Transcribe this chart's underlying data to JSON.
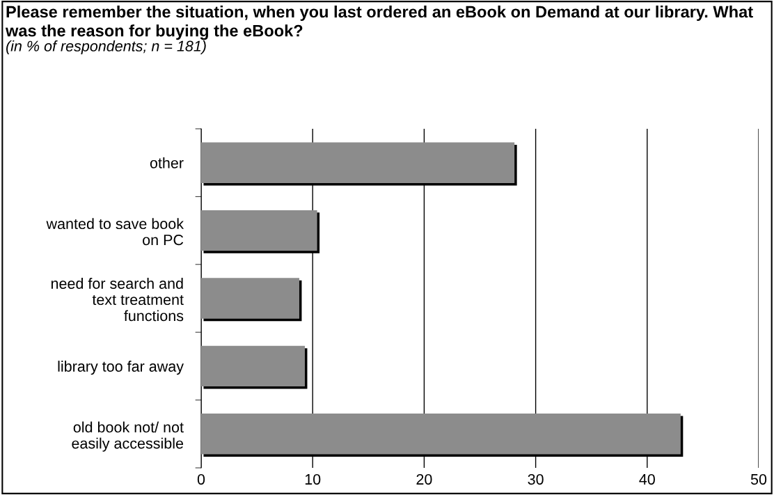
{
  "chart_data": {
    "type": "bar",
    "orientation": "horizontal",
    "title": "Please remember the situation, when you last ordered an eBook on Demand at our library. What was the reason for buying the eBook?",
    "subtitle": "(in % of respondents; n = 181)",
    "categories": [
      "other",
      "wanted to save book\non PC",
      "need for search and\ntext treatment\nfunctions",
      "library too far away",
      "old book not/ not\neasily accessible"
    ],
    "values": [
      28.1,
      10.4,
      8.8,
      9.3,
      43.0
    ],
    "color": "#8c8c8c",
    "xlim": [
      0,
      50
    ],
    "xticks": [
      0,
      10,
      20,
      30,
      40,
      50
    ],
    "grid": "x"
  }
}
